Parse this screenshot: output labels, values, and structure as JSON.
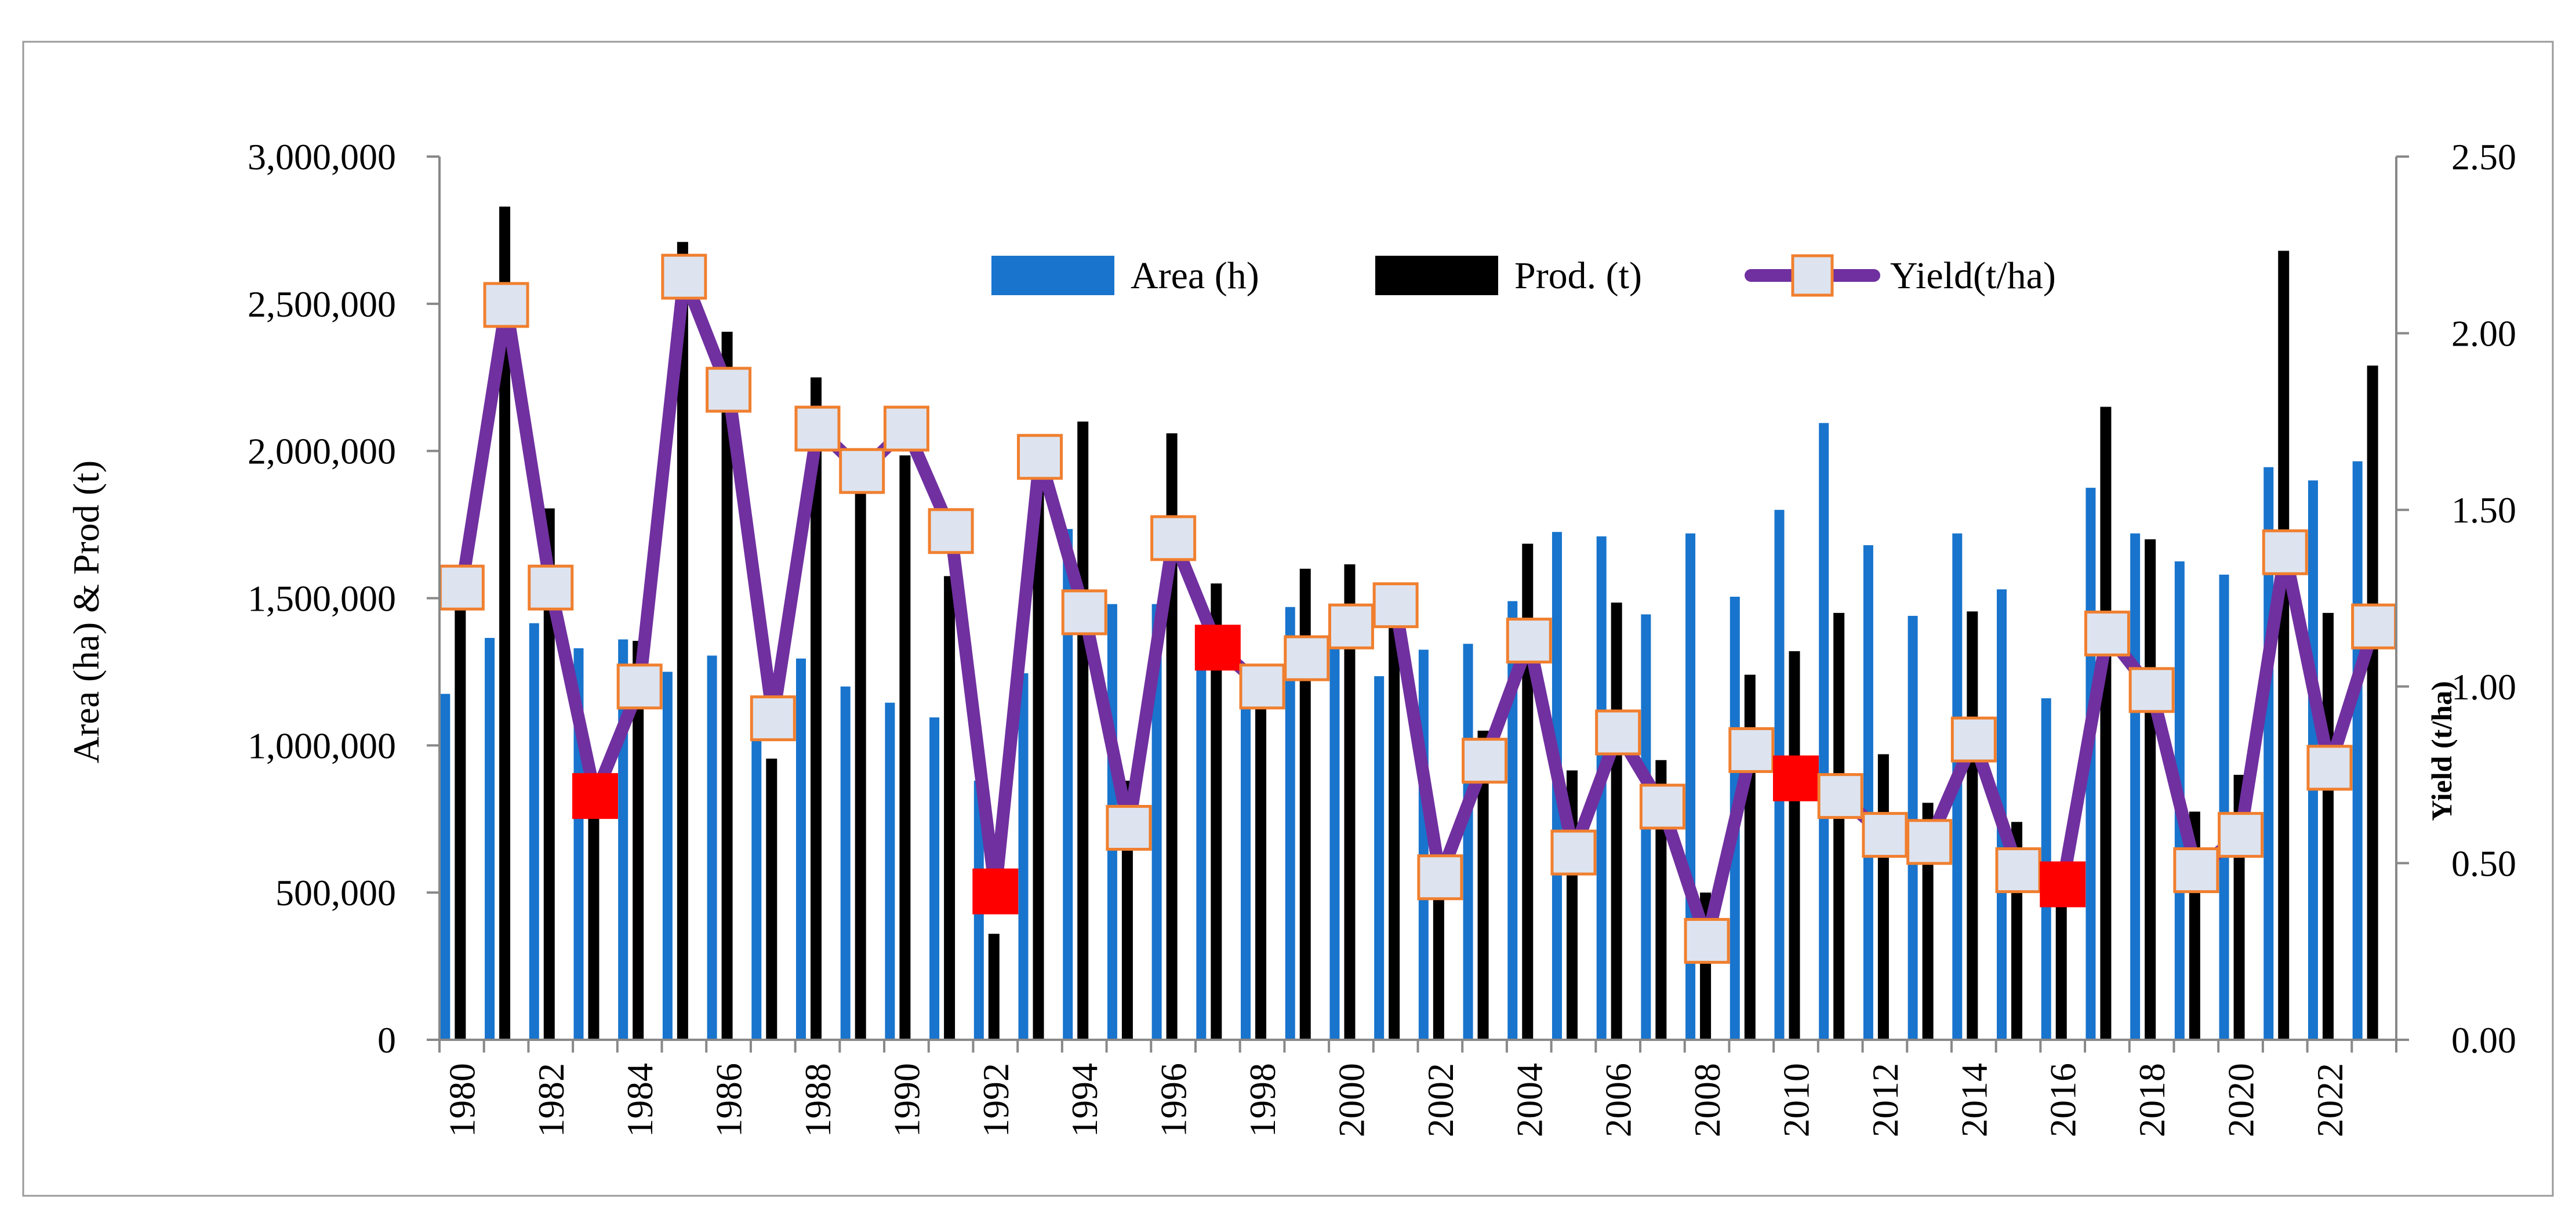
{
  "chart_data": {
    "type": "bar",
    "title": "",
    "x": [
      1980,
      1981,
      1982,
      1983,
      1984,
      1985,
      1986,
      1987,
      1988,
      1989,
      1990,
      1991,
      1992,
      1993,
      1994,
      1995,
      1996,
      1997,
      1998,
      1999,
      2000,
      2001,
      2002,
      2003,
      2004,
      2005,
      2006,
      2007,
      2008,
      2009,
      2010,
      2011,
      2012,
      2013,
      2014,
      2015,
      2016,
      2017,
      2018,
      2019,
      2020,
      2021,
      2022,
      2023
    ],
    "x_tick_labels": [
      "1980",
      "1982",
      "1984",
      "1986",
      "1988",
      "1990",
      "1992",
      "1994",
      "1996",
      "1998",
      "2000",
      "2002",
      "2004",
      "2006",
      "2008",
      "2010",
      "2012",
      "2014",
      "2016",
      "2018",
      "2020",
      "2022"
    ],
    "ylabel": "Area (ha) & Prod (t)",
    "ylim": [
      0,
      3000000
    ],
    "y_tick_labels": [
      "0",
      "500,000",
      "1,000,000",
      "1,500,000",
      "2,000,000",
      "2,500,000",
      "3,000,000"
    ],
    "y2label": "Yield  (t/ha)",
    "y2lim": [
      0,
      2.5
    ],
    "y2_tick_labels": [
      "0.00",
      "0.50",
      "1.00",
      "1.50",
      "2.00",
      "2.50"
    ],
    "series": [
      {
        "name": "Area (h)",
        "type": "bar",
        "axis": "left",
        "color": "#1874cd",
        "values": [
          1175000,
          1365000,
          1415000,
          1330000,
          1360000,
          1250000,
          1305000,
          1055000,
          1295000,
          1200000,
          1145000,
          1095000,
          880000,
          1245000,
          1735000,
          1480000,
          1480000,
          1320000,
          1200000,
          1470000,
          1390000,
          1235000,
          1325000,
          1345000,
          1490000,
          1725000,
          1710000,
          1445000,
          1720000,
          1505000,
          1800000,
          2095000,
          1680000,
          1440000,
          1720000,
          1530000,
          1160000,
          1875000,
          1720000,
          1625000,
          1580000,
          1945000,
          1900000,
          1965000
        ]
      },
      {
        "name": "Prod. (t)",
        "type": "bar",
        "axis": "left",
        "color": "#000000",
        "values": [
          1495000,
          2830000,
          1805000,
          905000,
          1355000,
          2710000,
          2405000,
          955000,
          2250000,
          1940000,
          1985000,
          1575000,
          360000,
          2050000,
          2100000,
          880000,
          2060000,
          1550000,
          1200000,
          1600000,
          1615000,
          1515000,
          625000,
          1050000,
          1685000,
          915000,
          1485000,
          950000,
          500000,
          1240000,
          1320000,
          1450000,
          970000,
          805000,
          1455000,
          740000,
          510000,
          2150000,
          1700000,
          775000,
          900000,
          2680000,
          1450000,
          2290000
        ]
      },
      {
        "name": "Yield(t/ha)",
        "type": "line",
        "axis": "right",
        "color": "#7030a0",
        "values": [
          1.28,
          2.08,
          1.28,
          0.69,
          1.0,
          2.16,
          1.84,
          0.91,
          1.73,
          1.61,
          1.73,
          1.44,
          0.42,
          1.65,
          1.21,
          0.6,
          1.42,
          1.11,
          1.0,
          1.08,
          1.17,
          1.23,
          0.46,
          0.79,
          1.13,
          0.53,
          0.87,
          0.66,
          0.28,
          0.82,
          0.74,
          0.69,
          0.58,
          0.56,
          0.85,
          0.48,
          0.44,
          1.15,
          0.99,
          0.48,
          0.58,
          1.38,
          0.77,
          1.17
        ],
        "highlight_color": "#ff0000",
        "highlighted_years": [
          1983,
          1992,
          1997,
          2010,
          2016
        ]
      }
    ],
    "legend": {
      "position": "top-center",
      "items": [
        {
          "label": "Area (h)",
          "color": "#1874cd",
          "kind": "bar"
        },
        {
          "label": "Prod. (t)",
          "color": "#000000",
          "kind": "bar"
        },
        {
          "label": "Yield(t/ha)",
          "color": "#7030a0",
          "kind": "line-marker"
        }
      ]
    },
    "colors": {
      "marker_fill": "#dde4f0",
      "marker_edge": "#f07f2f"
    },
    "grid": false
  }
}
